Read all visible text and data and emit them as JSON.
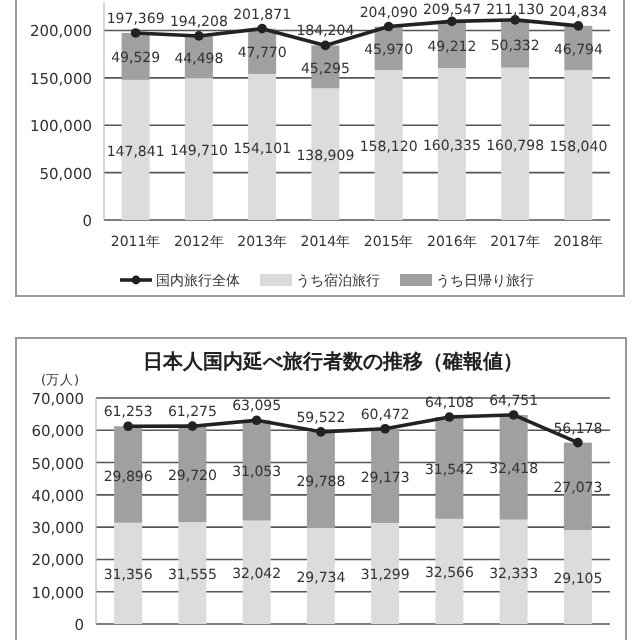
{
  "chart_data": [
    {
      "type": "bar",
      "stacked": true,
      "categories": [
        "2011年",
        "2012年",
        "2013年",
        "2014年",
        "2015年",
        "2016年",
        "2017年",
        "2018年"
      ],
      "series": [
        {
          "name": "国内旅行全体",
          "type": "line",
          "color": "#222222",
          "marker": "circle",
          "values": [
            197369,
            194208,
            201871,
            184204,
            204090,
            209547,
            211130,
            204834
          ],
          "value_labels": [
            "197,369",
            "194,208",
            "201,871",
            "184,204",
            "204,090",
            "209,547",
            "211,130",
            "204,834"
          ]
        },
        {
          "name": "うち宿泊旅行",
          "color": "#dcdcdc",
          "values": [
            147841,
            149710,
            154101,
            138909,
            158120,
            160335,
            160798,
            158040
          ],
          "value_labels": [
            "147,841",
            "149,710",
            "154,101",
            "138,909",
            "158,120",
            "160,335",
            "160,798",
            "158,040"
          ]
        },
        {
          "name": "うち日帰り旅行",
          "color": "#a0a0a0",
          "values": [
            49529,
            44498,
            47770,
            45295,
            45970,
            49212,
            50332,
            46794
          ],
          "value_labels": [
            "49,529",
            "44,498",
            "47,770",
            "45,295",
            "45,970",
            "49,212",
            "50,332",
            "46,794"
          ]
        }
      ],
      "ylim": [
        0,
        230000
      ],
      "yticks": [
        0,
        {
          "value": 50000,
          "label": "50,000"
        },
        {
          "value": 100000,
          "label": "100,000"
        },
        {
          "value": 150000,
          "label": "150,000"
        },
        {
          "value": 200000,
          "label": "200,000"
        }
      ],
      "grid": "y",
      "legend": "bottom"
    },
    {
      "type": "bar",
      "stacked": true,
      "title": "日本人国内延べ旅行者数の推移（確報値）",
      "ylabel": "(万人)",
      "categories": [
        null,
        null,
        null,
        null,
        null,
        null,
        null,
        null
      ],
      "series": [
        {
          "type": "line",
          "color": "#222222",
          "marker": "circle",
          "values": [
            61253,
            61275,
            63095,
            59522,
            60472,
            64108,
            64751,
            56178
          ],
          "value_labels": [
            "61,253",
            "61,275",
            "63,095",
            "59,522",
            "60,472",
            "64,108",
            "64,751",
            "56,178"
          ]
        },
        {
          "color": "#dcdcdc",
          "values": [
            31356,
            31555,
            32042,
            29734,
            31299,
            32566,
            32333,
            29105
          ],
          "value_labels": [
            "31,356",
            "31,555",
            "32,042",
            "29,734",
            "31,299",
            "32,566",
            "32,333",
            "29,105"
          ]
        },
        {
          "color": "#a0a0a0",
          "values": [
            29896,
            29720,
            31053,
            29788,
            29173,
            31542,
            32418,
            27073
          ],
          "value_labels": [
            "29,896",
            "29,720",
            "31,053",
            "29,788",
            "29,173",
            "31,542",
            "32,418",
            "27,073"
          ]
        }
      ],
      "ylim": [
        0,
        70000
      ],
      "yticks": [
        0,
        {
          "value": 10000,
          "label": "10,000"
        },
        {
          "value": 20000,
          "label": "20,000"
        },
        {
          "value": 30000,
          "label": "30,000"
        },
        {
          "value": 40000,
          "label": "40,000"
        },
        {
          "value": 50000,
          "label": "50,000"
        },
        {
          "value": 60000,
          "label": "60,000"
        },
        {
          "value": 70000,
          "label": "70,000"
        }
      ],
      "grid": "y",
      "tick_labels": "y"
    }
  ]
}
